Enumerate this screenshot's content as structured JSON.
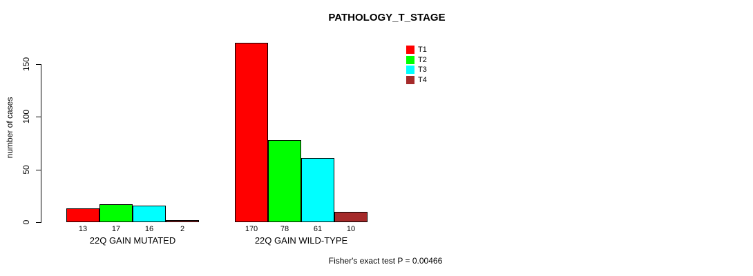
{
  "chart_data": {
    "type": "bar",
    "title": "PATHOLOGY_T_STAGE",
    "ylabel": "number of cases",
    "xlabel": "",
    "categories": [
      "22Q GAIN MUTATED",
      "22Q GAIN WILD-TYPE"
    ],
    "series": [
      {
        "name": "T1",
        "color": "#ff0000",
        "values": [
          13,
          170
        ]
      },
      {
        "name": "T2",
        "color": "#00ff00",
        "values": [
          17,
          78
        ]
      },
      {
        "name": "T3",
        "color": "#00ffff",
        "values": [
          16,
          61
        ]
      },
      {
        "name": "T4",
        "color": "#a52a2a",
        "values": [
          2,
          10
        ]
      }
    ],
    "yticks": [
      0,
      50,
      100,
      150
    ],
    "ylim": [
      0,
      150
    ],
    "grid": false,
    "legend_position": "top-right",
    "legend_entries": [
      "T1",
      "T2",
      "T3",
      "T4"
    ],
    "bar_value_labels": true,
    "annotation": "Fisher's exact test P = 0.00466"
  }
}
